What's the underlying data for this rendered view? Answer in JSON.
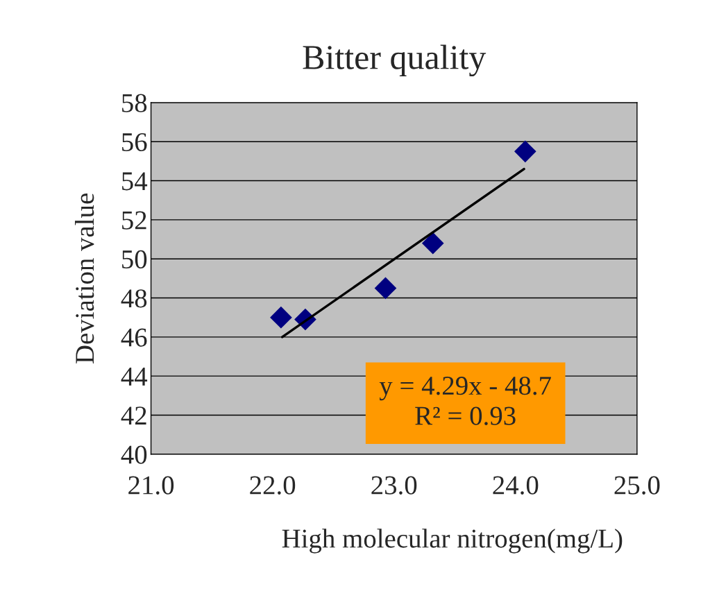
{
  "chart_data": {
    "type": "scatter",
    "title": "Bitter quality",
    "xlabel": "High molecular nitrogen(mg/L)",
    "ylabel": "Deviation value",
    "series": [
      {
        "color": "#000080",
        "marker": "diamond",
        "x": [
          22.07,
          22.27,
          22.93,
          23.32,
          24.08
        ],
        "values": [
          47.0,
          46.9,
          48.5,
          50.8,
          55.5
        ]
      },
      {
        "type": "line",
        "color": "#000000",
        "marker": "none",
        "line_style": "solid",
        "x": [
          22.08,
          24.07
        ],
        "values": [
          46.0,
          54.6
        ]
      }
    ],
    "annotations": [
      "y = 4.29x - 48.7",
      "R² = 0.93"
    ],
    "xlim": [
      21.0,
      25.0
    ],
    "xticks": [
      {
        "value": 21,
        "label": "21.0"
      },
      {
        "value": 22,
        "label": "22.0"
      },
      {
        "value": 23,
        "label": "23.0"
      },
      {
        "value": 24,
        "label": "24.0"
      },
      {
        "value": 25,
        "label": "25.0"
      }
    ],
    "ylim": [
      40,
      58
    ],
    "yticks": [
      40,
      42,
      44,
      46,
      48,
      50,
      52,
      54,
      56,
      58
    ],
    "grid": "y",
    "legend": false
  }
}
